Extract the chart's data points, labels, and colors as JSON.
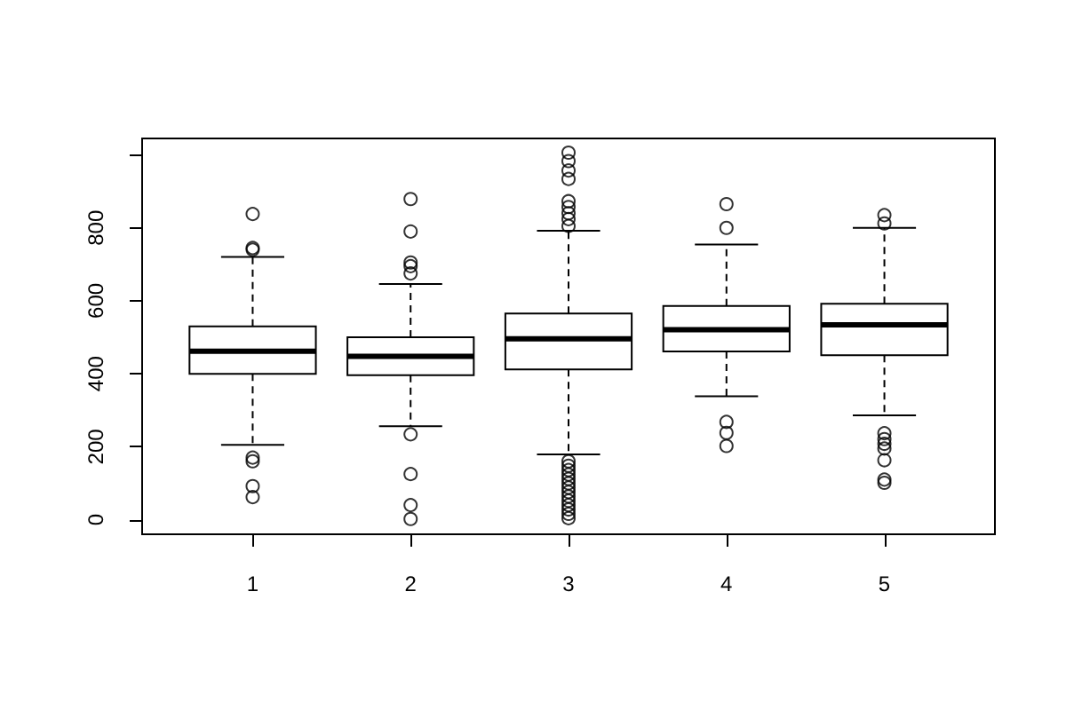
{
  "chart_data": {
    "type": "box",
    "categories": [
      "1",
      "2",
      "3",
      "4",
      "5"
    ],
    "color": "#000000",
    "boxes": [
      {
        "low": 205,
        "q1": 400,
        "median": 462,
        "q3": 530,
        "high": 720,
        "outliers": [
          838,
          745,
          740,
          170,
          160,
          92,
          62
        ]
      },
      {
        "low": 256,
        "q1": 396,
        "median": 448,
        "q3": 500,
        "high": 646,
        "outliers": [
          879,
          790,
          705,
          695,
          675,
          234,
          125,
          40,
          2
        ]
      },
      {
        "low": 179,
        "q1": 412,
        "median": 496,
        "q3": 565,
        "high": 792,
        "outliers": [
          1006,
          983,
          957,
          934,
          873,
          857,
          840,
          824,
          805,
          160,
          148,
          136,
          124,
          112,
          100,
          88,
          76,
          64,
          52,
          40,
          28,
          16,
          4
        ]
      },
      {
        "low": 338,
        "q1": 461,
        "median": 521,
        "q3": 586,
        "high": 754,
        "outliers": [
          865,
          800,
          268,
          238,
          202
        ]
      },
      {
        "low": 286,
        "q1": 451,
        "median": 534,
        "q3": 592,
        "high": 800,
        "outliers": [
          835,
          812,
          237,
          221,
          208,
          195,
          163,
          110,
          101
        ]
      }
    ],
    "ylim": [
      -40,
      1045
    ],
    "yticks": [
      0,
      200,
      400,
      600,
      800,
      {
        "value": 1000,
        "label": null
      }
    ]
  }
}
